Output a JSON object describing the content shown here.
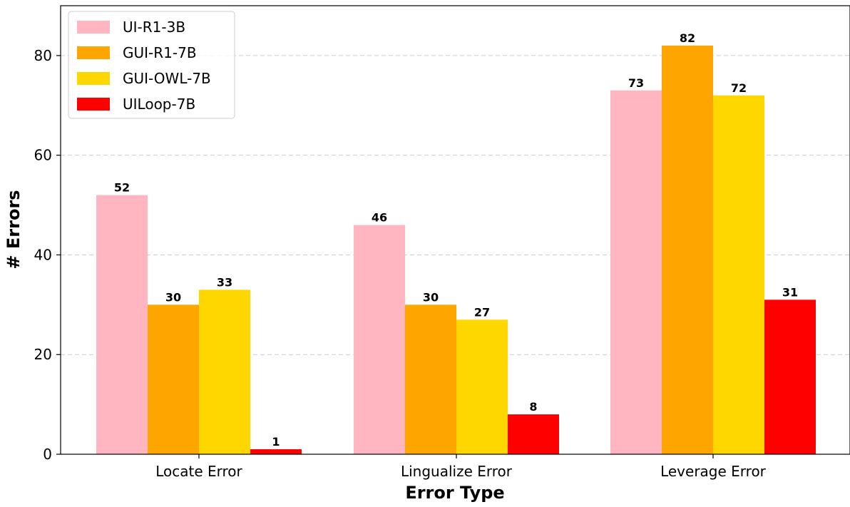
{
  "chart_data": {
    "type": "bar",
    "title": "",
    "xlabel": "Error Type",
    "ylabel": "# Errors",
    "categories": [
      "Locate Error",
      "Lingualize Error",
      "Leverage Error"
    ],
    "series": [
      {
        "name": "UI-R1-3B",
        "color": "#FFB6C1",
        "values": [
          52,
          46,
          73
        ]
      },
      {
        "name": "GUI-R1-7B",
        "color": "#FFA500",
        "values": [
          30,
          30,
          82
        ]
      },
      {
        "name": "GUI-OWL-7B",
        "color": "#FFD700",
        "values": [
          33,
          27,
          72
        ]
      },
      {
        "name": "UILoop-7B",
        "color": "#FF0000",
        "values": [
          1,
          8,
          31
        ]
      }
    ],
    "ylim": [
      0,
      90
    ],
    "yticks": [
      0,
      20,
      40,
      60,
      80
    ],
    "grid": "horizontal dashed",
    "legend_position": "top-left",
    "data_labels": true
  }
}
